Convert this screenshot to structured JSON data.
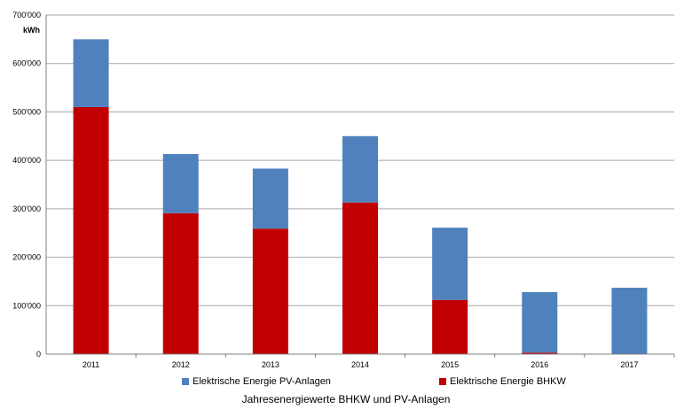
{
  "chart_data": {
    "type": "bar",
    "stacked": true,
    "title": "Jahresenergiewerte BHKW und PV-Anlagen",
    "unit_label": "kWh",
    "categories": [
      "2011",
      "2012",
      "2013",
      "2014",
      "2015",
      "2016",
      "2017"
    ],
    "ylim": [
      0,
      700000
    ],
    "y_ticks": [
      "0",
      "100'000",
      "200'000",
      "300'000",
      "400'000",
      "500'000",
      "600'000",
      "700'000"
    ],
    "grid": true,
    "legend_position": "bottom",
    "series": [
      {
        "name": "Elektrische Energie BHKW",
        "color": "#c00000",
        "values": [
          510000,
          291000,
          259000,
          313000,
          112000,
          3000,
          0
        ]
      },
      {
        "name": "Elektrische Energie PV-Anlagen",
        "color": "#4f81bd",
        "values": [
          140000,
          122000,
          124000,
          137000,
          149000,
          125000,
          137000
        ]
      }
    ],
    "legend_order": [
      1,
      0
    ]
  }
}
